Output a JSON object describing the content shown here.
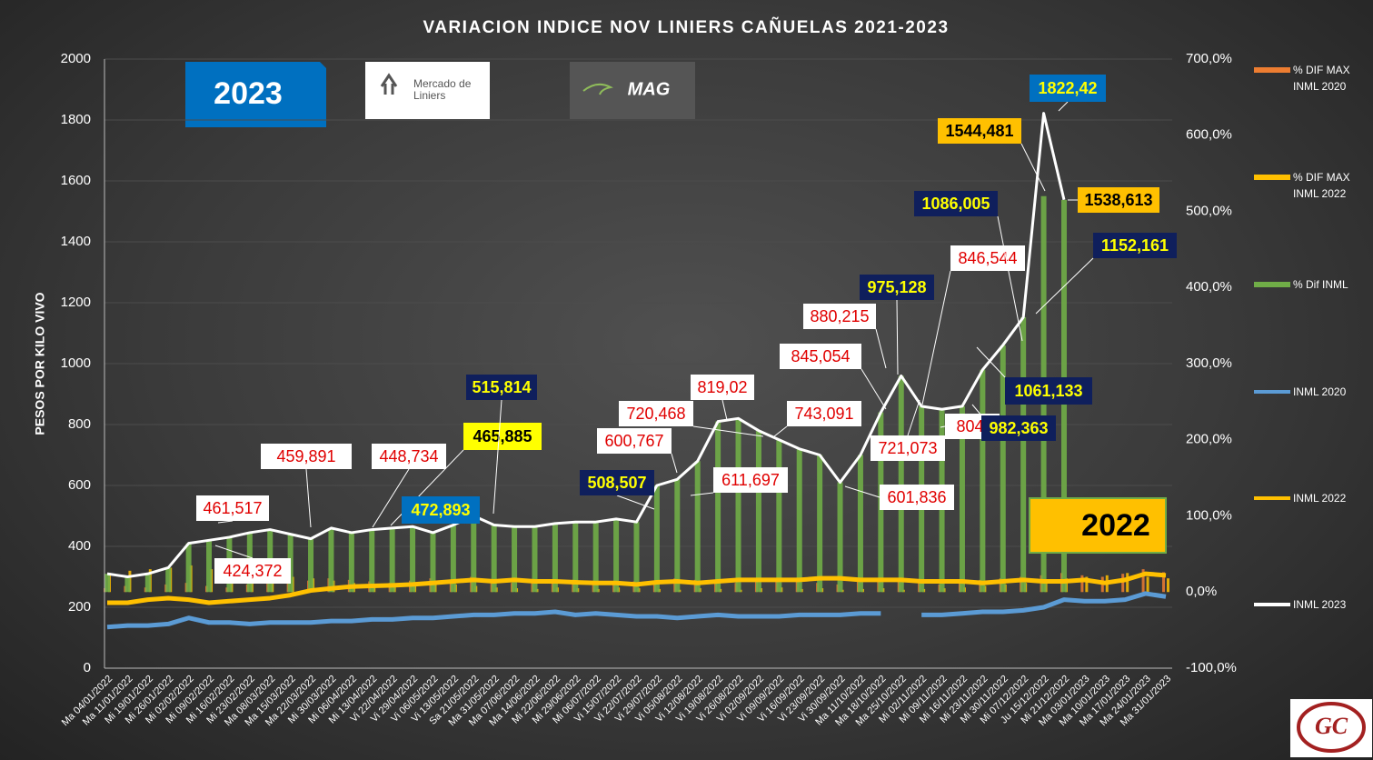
{
  "chart_data": {
    "type": "combo",
    "title": "VARIACION INDICE NOV LINIERS CAÑUELAS 2021-2023",
    "y_label": "PESOS POR KILO VIVO",
    "categories": [
      "Ma 04/01/2022",
      "Ma 11/01/2022",
      "Mi 19/01/2022",
      "Mi 26/01/2022",
      "Mi 02/02/2022",
      "Mi 09/02/2022",
      "Mi 16/02/2022",
      "Mi 23/02/2022",
      "Ma 08/03/2022",
      "Ma 15/03/2022",
      "Ma 22/03/2022",
      "Mi 30/03/2022",
      "Mi 06/04/2022",
      "Mi 13/04/2022",
      "Vi 22/04/2022",
      "Vi 29/04/2022",
      "Vi 06/05/2022",
      "Vi 13/05/2022",
      "Sa 21/05/2022",
      "Ma 31/05/2022",
      "Ma 07/06/2022",
      "Ma 14/06/2022",
      "Mi 22/06/2022",
      "Mi 29/06/2022",
      "Mi 06/07/2022",
      "Vi 15/07/2022",
      "Vi 22/07/2022",
      "Vi 29/07/2022",
      "Vi 05/08/2022",
      "Vi 12/08/2022",
      "Vi 19/08/2022",
      "Vi 26/08/2022",
      "Vi 02/09/2022",
      "Vi 09/09/2022",
      "Vi 16/09/2022",
      "Vi 23/09/2022",
      "Vi 30/09/2022",
      "Ma 11/10/2022",
      "Ma 18/10/2022",
      "Ma 25/10/2022",
      "Mi 02/11/2022",
      "Mi 09/11/2022",
      "Mi 16/11/2022",
      "Mi 23/11/2022",
      "Mi 30/11/2022",
      "Mi 07/12/2022",
      "Ju 15/12/2022",
      "Mi 21/12/2022",
      "Ma 03/01/2023",
      "Ma 10/01/2023",
      "Ma 17/01/2023",
      "Ma 24/01/2023",
      "Ma 31/01/2023"
    ],
    "series": [
      {
        "name": "% DIF MAX INML 2020",
        "kind": "bar",
        "axis": "y2",
        "color": "#ed7d31",
        "values": [
          5,
          8,
          6,
          10,
          12,
          8,
          6,
          10,
          12,
          14,
          15,
          18,
          16,
          14,
          12,
          15,
          18,
          16,
          20,
          15,
          12,
          14,
          15,
          16,
          12,
          10,
          14,
          15,
          18,
          16,
          14,
          12,
          15,
          16,
          14,
          12,
          10,
          14,
          16,
          15,
          12,
          10,
          14,
          16,
          18,
          20,
          22,
          25,
          22,
          20,
          24,
          30,
          26
        ]
      },
      {
        "name": "% DIF MAX INML 2022",
        "kind": "bar",
        "axis": "y2",
        "color": "#ffc000",
        "values": [
          25,
          28,
          30,
          32,
          35,
          30,
          28,
          25,
          22,
          20,
          18,
          15,
          12,
          10,
          8,
          10,
          12,
          10,
          8,
          6,
          5,
          4,
          6,
          5,
          4,
          6,
          5,
          4,
          3,
          5,
          4,
          3,
          5,
          6,
          4,
          5,
          3,
          4,
          5,
          3,
          4,
          5,
          6,
          8,
          10,
          12,
          15,
          18,
          20,
          22,
          25,
          20,
          18
        ]
      },
      {
        "name": "% Dif INML",
        "kind": "bar",
        "axis": "y2",
        "color": "#70ad47",
        "values": [
          24,
          20,
          24,
          32,
          64,
          68,
          72,
          78,
          82,
          76,
          70,
          84,
          78,
          82,
          84,
          86,
          78,
          88,
          100,
          88,
          86,
          86,
          90,
          92,
          92,
          96,
          92,
          140,
          148,
          172,
          224,
          228,
          212,
          200,
          188,
          180,
          144,
          180,
          236,
          284,
          244,
          240,
          244,
          292,
          324,
          361,
          520,
          515,
          null,
          null,
          null,
          null,
          null
        ]
      },
      {
        "name": "INML 2020",
        "kind": "line",
        "color": "#5b9bd5",
        "values": [
          135,
          140,
          140,
          145,
          165,
          150,
          150,
          145,
          150,
          150,
          150,
          155,
          155,
          160,
          160,
          165,
          165,
          170,
          175,
          175,
          180,
          180,
          185,
          175,
          180,
          175,
          170,
          170,
          165,
          170,
          175,
          170,
          170,
          170,
          175,
          175,
          175,
          180,
          180,
          null,
          175,
          175,
          180,
          185,
          185,
          190,
          200,
          225,
          220,
          220,
          225,
          245,
          235
        ]
      },
      {
        "name": "INML 2022",
        "kind": "line",
        "color": "#ffc000",
        "values": [
          215,
          215,
          225,
          230,
          225,
          215,
          220,
          225,
          230,
          240,
          255,
          262,
          268,
          270,
          272,
          275,
          280,
          285,
          290,
          285,
          290,
          285,
          285,
          282,
          280,
          280,
          275,
          282,
          285,
          280,
          285,
          290,
          290,
          290,
          290,
          295,
          295,
          290,
          290,
          290,
          285,
          285,
          285,
          280,
          285,
          290,
          285,
          285,
          290,
          280,
          290,
          310,
          305
        ]
      },
      {
        "name": "INML 2023",
        "kind": "line",
        "color": "#ffffff",
        "values": [
          310,
          300,
          310,
          330,
          410,
          420,
          430,
          445,
          455,
          440,
          425,
          460,
          445,
          455,
          460,
          465,
          445,
          470,
          500,
          470,
          465,
          465,
          475,
          480,
          480,
          490,
          480,
          600,
          620,
          680,
          810,
          820,
          780,
          750,
          720,
          700,
          610,
          700,
          840,
          960,
          860,
          850,
          860,
          980,
          1061,
          1152,
          1822,
          1538,
          null,
          null,
          null,
          null,
          null
        ]
      }
    ],
    "ylim": [
      0,
      2000
    ],
    "yticks": [
      0,
      200,
      400,
      600,
      800,
      1000,
      1200,
      1400,
      1600,
      1800,
      2000
    ],
    "y2lim": [
      -100,
      700
    ],
    "y2ticks": [
      {
        "value": -100,
        "label": "-100,0%"
      },
      {
        "value": 0,
        "label": "0,0%"
      },
      {
        "value": 100,
        "label": "100,0%"
      },
      {
        "value": 200,
        "label": "200,0%"
      },
      {
        "value": 300,
        "label": "300,0%"
      },
      {
        "value": 400,
        "label": "400,0%"
      },
      {
        "value": 500,
        "label": "500,0%"
      },
      {
        "value": 600,
        "label": "600,0%"
      },
      {
        "value": 700,
        "label": "700,0%"
      }
    ],
    "grid": true,
    "legend": "right",
    "annotations": [
      {
        "text": "461,517",
        "box": "#ffffff",
        "color": "#e00000"
      },
      {
        "text": "424,372",
        "box": "#ffffff",
        "color": "#e00000"
      },
      {
        "text": "459,891",
        "box": "#ffffff",
        "color": "#e00000"
      },
      {
        "text": "448,734",
        "box": "#ffffff",
        "color": "#e00000"
      },
      {
        "text": "465,885",
        "box": "#ffff00",
        "color": "#000000"
      },
      {
        "text": "515,814",
        "box": "#0f1f5c",
        "color": "#ffff00"
      },
      {
        "text": "472,893",
        "box": "#0070c0",
        "color": "#ffff00"
      },
      {
        "text": "508,507",
        "box": "#0f1f5c",
        "color": "#ffff00"
      },
      {
        "text": "600,767",
        "box": "#ffffff",
        "color": "#e00000"
      },
      {
        "text": "720,468",
        "box": "#ffffff",
        "color": "#e00000"
      },
      {
        "text": "819,02",
        "box": "#ffffff",
        "color": "#e00000"
      },
      {
        "text": "611,697",
        "box": "#ffffff",
        "color": "#e00000"
      },
      {
        "text": "743,091",
        "box": "#ffffff",
        "color": "#e00000"
      },
      {
        "text": "845,054",
        "box": "#ffffff",
        "color": "#e00000"
      },
      {
        "text": "880,215",
        "box": "#ffffff",
        "color": "#e00000"
      },
      {
        "text": "975,128",
        "box": "#0f1f5c",
        "color": "#ffff00"
      },
      {
        "text": "721,073",
        "box": "#ffffff",
        "color": "#e00000"
      },
      {
        "text": "601,836",
        "box": "#ffffff",
        "color": "#e00000"
      },
      {
        "text": "846,544",
        "box": "#ffffff",
        "color": "#e00000"
      },
      {
        "text": "804,",
        "box": "#ffffff",
        "color": "#e00000"
      },
      {
        "text": "982,363",
        "box": "#0f1f5c",
        "color": "#ffff00"
      },
      {
        "text": "1061,133",
        "box": "#0f1f5c",
        "color": "#ffff00"
      },
      {
        "text": "1086,005",
        "box": "#0f1f5c",
        "color": "#ffff00"
      },
      {
        "text": "1152,161",
        "box": "#0f1f5c",
        "color": "#ffff00"
      },
      {
        "text": "1544,481",
        "box": "#ffc000",
        "color": "#000000"
      },
      {
        "text": "1822,42",
        "box": "#0070c0",
        "color": "#ffff00"
      },
      {
        "text": "1538,613",
        "box": "#ffc000",
        "color": "#000000"
      }
    ],
    "badges": [
      "2023",
      "2022"
    ],
    "logos": [
      "Mercado de Liniers",
      "MAG",
      "GC"
    ]
  }
}
